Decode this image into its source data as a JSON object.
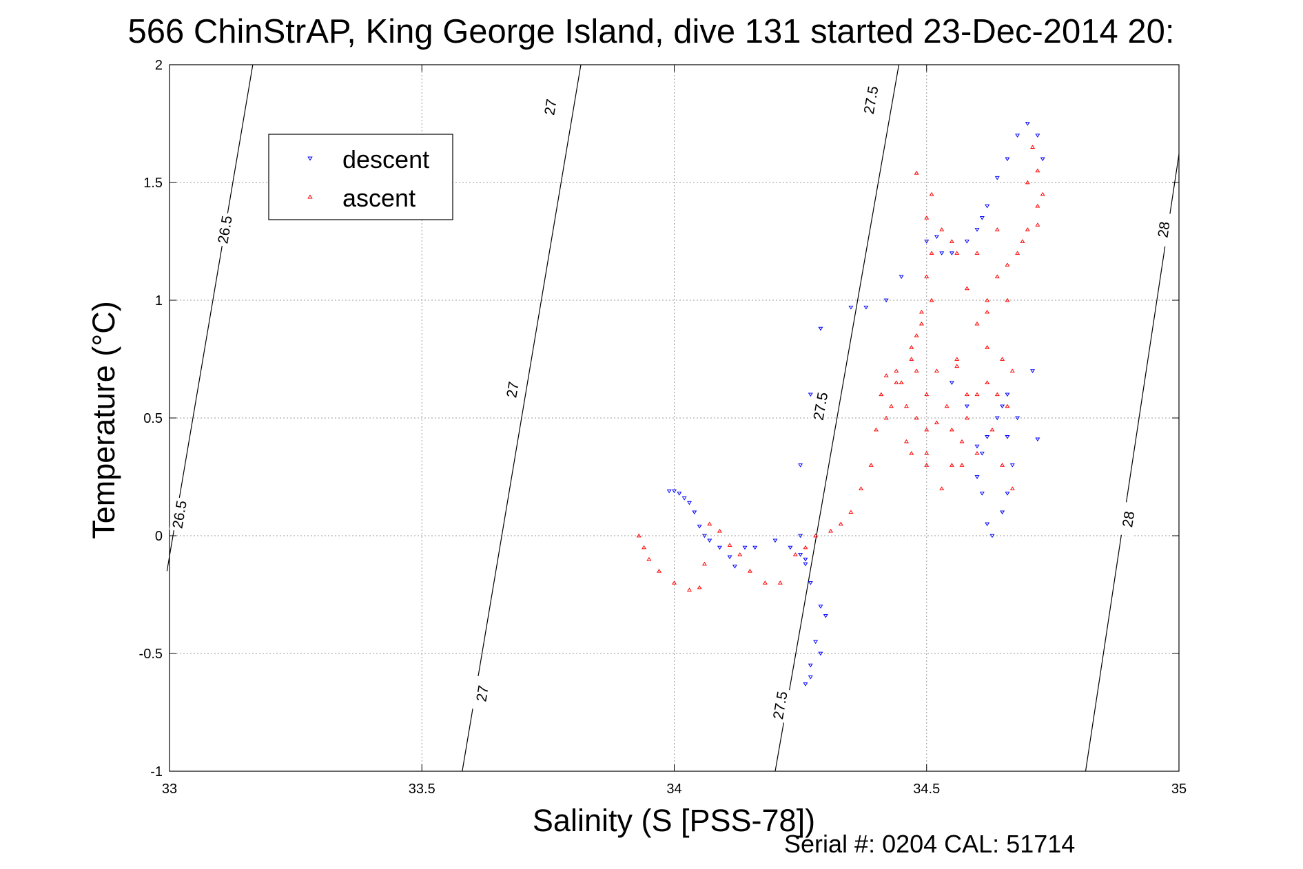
{
  "chart_data": {
    "type": "scatter",
    "title": "566 ChinStrAP, King George Island, dive 131 started 23-Dec-2014 20:",
    "xlabel": "Salinity (S [PSS-78])",
    "ylabel": "Temperature (°C)",
    "xlim": [
      33,
      35
    ],
    "ylim": [
      -1,
      2
    ],
    "x_ticks": [
      "33",
      "33.5",
      "34",
      "34.5",
      "35"
    ],
    "y_ticks": [
      "-1",
      "-0.5",
      "0",
      "0.5",
      "1",
      "1.5",
      "2"
    ],
    "grid": true,
    "legend_position": "top-left",
    "footer": "Serial #: 0204  CAL: 51714",
    "density_contours": [
      {
        "value": "26.5",
        "line": [
          [
            32.995,
            -0.15
          ],
          [
            33.165,
            2.0
          ]
        ],
        "labels": [
          [
            33.11,
            1.3
          ],
          [
            33.02,
            0.09
          ]
        ]
      },
      {
        "value": "27",
        "line": [
          [
            33.58,
            -1.0
          ],
          [
            33.815,
            2.0
          ]
        ],
        "labels": [
          [
            33.755,
            1.82
          ],
          [
            33.68,
            0.62
          ],
          [
            33.62,
            -0.67
          ]
        ]
      },
      {
        "value": "27.5",
        "line": [
          [
            34.2,
            -1.0
          ],
          [
            34.445,
            2.0
          ]
        ],
        "labels": [
          [
            34.39,
            1.85
          ],
          [
            34.29,
            0.55
          ],
          [
            34.21,
            -0.72
          ]
        ]
      },
      {
        "value": "28",
        "line": [
          [
            34.815,
            -1.0
          ],
          [
            35.0,
            1.62
          ]
        ],
        "labels": [
          [
            34.97,
            1.3
          ],
          [
            34.9,
            0.07
          ]
        ]
      }
    ],
    "series": [
      {
        "name": "descent",
        "color": "#0000ff",
        "marker": "triangle-down",
        "points": [
          [
            33.99,
            0.19
          ],
          [
            34.0,
            0.19
          ],
          [
            34.01,
            0.18
          ],
          [
            34.02,
            0.16
          ],
          [
            34.03,
            0.14
          ],
          [
            34.04,
            0.1
          ],
          [
            34.05,
            0.04
          ],
          [
            34.06,
            0.0
          ],
          [
            34.07,
            -0.02
          ],
          [
            34.09,
            -0.05
          ],
          [
            34.11,
            -0.09
          ],
          [
            34.12,
            -0.13
          ],
          [
            34.14,
            -0.05
          ],
          [
            34.16,
            -0.05
          ],
          [
            34.2,
            -0.02
          ],
          [
            34.23,
            -0.05
          ],
          [
            34.25,
            -0.08
          ],
          [
            34.26,
            -0.1
          ],
          [
            34.27,
            -0.2
          ],
          [
            34.29,
            -0.3
          ],
          [
            34.3,
            -0.34
          ],
          [
            34.28,
            -0.45
          ],
          [
            34.27,
            -0.55
          ],
          [
            34.26,
            -0.63
          ],
          [
            34.27,
            -0.6
          ],
          [
            34.29,
            -0.5
          ],
          [
            34.26,
            -0.12
          ],
          [
            34.25,
            0.0
          ],
          [
            34.25,
            0.3
          ],
          [
            34.27,
            0.6
          ],
          [
            34.29,
            0.88
          ],
          [
            34.35,
            0.97
          ],
          [
            34.38,
            0.97
          ],
          [
            34.42,
            1.0
          ],
          [
            34.45,
            1.1
          ],
          [
            34.5,
            1.25
          ],
          [
            34.52,
            1.27
          ],
          [
            34.53,
            1.2
          ],
          [
            34.55,
            1.2
          ],
          [
            34.58,
            1.25
          ],
          [
            34.6,
            1.3
          ],
          [
            34.61,
            1.35
          ],
          [
            34.62,
            1.4
          ],
          [
            34.64,
            1.52
          ],
          [
            34.66,
            1.6
          ],
          [
            34.68,
            1.7
          ],
          [
            34.7,
            1.75
          ],
          [
            34.72,
            1.7
          ],
          [
            34.73,
            1.6
          ],
          [
            34.71,
            0.7
          ],
          [
            34.66,
            0.6
          ],
          [
            34.65,
            0.55
          ],
          [
            34.64,
            0.5
          ],
          [
            34.62,
            0.42
          ],
          [
            34.61,
            0.35
          ],
          [
            34.6,
            0.25
          ],
          [
            34.61,
            0.18
          ],
          [
            34.62,
            0.05
          ],
          [
            34.63,
            0.0
          ],
          [
            34.65,
            0.1
          ],
          [
            34.66,
            0.18
          ],
          [
            34.67,
            0.3
          ],
          [
            34.68,
            0.5
          ],
          [
            34.72,
            0.41
          ],
          [
            34.58,
            0.55
          ],
          [
            34.55,
            0.65
          ],
          [
            34.6,
            0.38
          ],
          [
            34.66,
            0.42
          ]
        ]
      },
      {
        "name": "ascent",
        "color": "#ff0000",
        "marker": "triangle-up",
        "points": [
          [
            33.93,
            0.0
          ],
          [
            33.94,
            -0.05
          ],
          [
            33.95,
            -0.1
          ],
          [
            33.97,
            -0.15
          ],
          [
            34.0,
            -0.2
          ],
          [
            34.03,
            -0.23
          ],
          [
            34.05,
            -0.22
          ],
          [
            34.06,
            -0.12
          ],
          [
            34.07,
            0.05
          ],
          [
            34.09,
            0.02
          ],
          [
            34.11,
            -0.04
          ],
          [
            34.13,
            -0.08
          ],
          [
            34.15,
            -0.15
          ],
          [
            34.18,
            -0.2
          ],
          [
            34.21,
            -0.2
          ],
          [
            34.24,
            -0.08
          ],
          [
            34.26,
            -0.05
          ],
          [
            34.28,
            0.0
          ],
          [
            34.31,
            0.02
          ],
          [
            34.33,
            0.05
          ],
          [
            34.35,
            0.1
          ],
          [
            34.37,
            0.2
          ],
          [
            34.39,
            0.3
          ],
          [
            34.4,
            0.45
          ],
          [
            34.42,
            0.5
          ],
          [
            34.43,
            0.55
          ],
          [
            34.45,
            0.65
          ],
          [
            34.47,
            0.75
          ],
          [
            34.48,
            0.85
          ],
          [
            34.49,
            0.95
          ],
          [
            34.5,
            1.1
          ],
          [
            34.51,
            1.2
          ],
          [
            34.5,
            1.35
          ],
          [
            34.51,
            1.45
          ],
          [
            34.48,
            1.54
          ],
          [
            34.47,
            0.35
          ],
          [
            34.46,
            0.4
          ],
          [
            34.5,
            0.3
          ],
          [
            34.53,
            0.2
          ],
          [
            34.55,
            0.3
          ],
          [
            34.57,
            0.4
          ],
          [
            34.58,
            0.5
          ],
          [
            34.58,
            0.6
          ],
          [
            34.56,
            0.72
          ],
          [
            34.52,
            0.7
          ],
          [
            34.5,
            0.6
          ],
          [
            34.52,
            0.48
          ],
          [
            34.5,
            0.45
          ],
          [
            34.54,
            0.55
          ],
          [
            34.6,
            0.6
          ],
          [
            34.62,
            0.65
          ],
          [
            34.64,
            0.6
          ],
          [
            34.66,
            0.55
          ],
          [
            34.67,
            0.7
          ],
          [
            34.65,
            0.75
          ],
          [
            34.62,
            0.8
          ],
          [
            34.6,
            0.9
          ],
          [
            34.62,
            1.0
          ],
          [
            34.64,
            1.1
          ],
          [
            34.66,
            1.15
          ],
          [
            34.68,
            1.2
          ],
          [
            34.7,
            1.3
          ],
          [
            34.72,
            1.4
          ],
          [
            34.73,
            1.45
          ],
          [
            34.72,
            1.55
          ],
          [
            34.71,
            1.65
          ],
          [
            34.7,
            1.5
          ],
          [
            34.66,
            1.0
          ],
          [
            34.62,
            0.95
          ],
          [
            34.58,
            1.05
          ],
          [
            34.56,
            1.2
          ],
          [
            34.55,
            1.25
          ],
          [
            34.53,
            1.3
          ],
          [
            34.51,
            1.0
          ],
          [
            34.49,
            0.9
          ],
          [
            34.47,
            0.8
          ],
          [
            34.44,
            0.7
          ],
          [
            34.42,
            0.68
          ],
          [
            34.41,
            0.6
          ],
          [
            34.44,
            0.65
          ],
          [
            34.48,
            0.5
          ],
          [
            34.5,
            0.35
          ],
          [
            34.55,
            0.45
          ],
          [
            34.57,
            0.3
          ],
          [
            34.6,
            0.35
          ],
          [
            34.63,
            0.45
          ],
          [
            34.65,
            0.3
          ],
          [
            34.67,
            0.2
          ],
          [
            34.46,
            0.55
          ],
          [
            34.48,
            0.7
          ],
          [
            34.56,
            0.75
          ],
          [
            34.6,
            1.2
          ],
          [
            34.64,
            1.3
          ],
          [
            34.69,
            1.25
          ],
          [
            34.72,
            1.32
          ]
        ]
      }
    ]
  }
}
